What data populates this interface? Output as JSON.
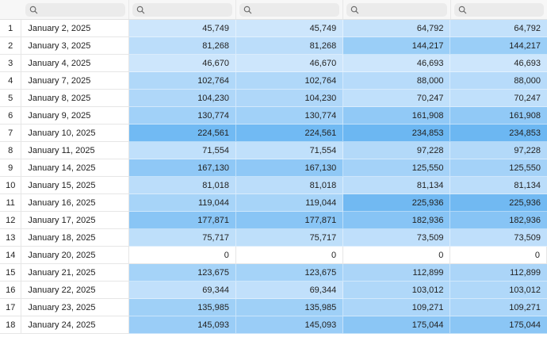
{
  "table": {
    "columns": [
      {
        "search_value": ""
      },
      {
        "search_value": ""
      },
      {
        "search_value": ""
      },
      {
        "search_value": ""
      },
      {
        "search_value": ""
      }
    ],
    "rows": [
      {
        "n": "1",
        "date": "January 2, 2025",
        "v": [
          "45,749",
          "45,749",
          "64,792",
          "64,792"
        ]
      },
      {
        "n": "2",
        "date": "January 3, 2025",
        "v": [
          "81,268",
          "81,268",
          "144,217",
          "144,217"
        ]
      },
      {
        "n": "3",
        "date": "January 4, 2025",
        "v": [
          "46,670",
          "46,670",
          "46,693",
          "46,693"
        ]
      },
      {
        "n": "4",
        "date": "January 7, 2025",
        "v": [
          "102,764",
          "102,764",
          "88,000",
          "88,000"
        ]
      },
      {
        "n": "5",
        "date": "January 8, 2025",
        "v": [
          "104,230",
          "104,230",
          "70,247",
          "70,247"
        ]
      },
      {
        "n": "6",
        "date": "January 9, 2025",
        "v": [
          "130,774",
          "130,774",
          "161,908",
          "161,908"
        ]
      },
      {
        "n": "7",
        "date": "January 10, 2025",
        "v": [
          "224,561",
          "224,561",
          "234,853",
          "234,853"
        ]
      },
      {
        "n": "8",
        "date": "January 11, 2025",
        "v": [
          "71,554",
          "71,554",
          "97,228",
          "97,228"
        ]
      },
      {
        "n": "9",
        "date": "January 14, 2025",
        "v": [
          "167,130",
          "167,130",
          "125,550",
          "125,550"
        ]
      },
      {
        "n": "10",
        "date": "January 15, 2025",
        "v": [
          "81,018",
          "81,018",
          "81,134",
          "81,134"
        ]
      },
      {
        "n": "11",
        "date": "January 16, 2025",
        "v": [
          "119,044",
          "119,044",
          "225,936",
          "225,936"
        ]
      },
      {
        "n": "12",
        "date": "January 17, 2025",
        "v": [
          "177,871",
          "177,871",
          "182,936",
          "182,936"
        ]
      },
      {
        "n": "13",
        "date": "January 18, 2025",
        "v": [
          "75,717",
          "75,717",
          "73,509",
          "73,509"
        ]
      },
      {
        "n": "14",
        "date": "January 20, 2025",
        "v": [
          "0",
          "0",
          "0",
          "0"
        ]
      },
      {
        "n": "15",
        "date": "January 21, 2025",
        "v": [
          "123,675",
          "123,675",
          "112,899",
          "112,899"
        ]
      },
      {
        "n": "16",
        "date": "January 22, 2025",
        "v": [
          "69,344",
          "69,344",
          "103,012",
          "103,012"
        ]
      },
      {
        "n": "17",
        "date": "January 23, 2025",
        "v": [
          "135,985",
          "135,985",
          "109,271",
          "109,271"
        ]
      },
      {
        "n": "18",
        "date": "January 24, 2025",
        "v": [
          "145,093",
          "145,093",
          "175,044",
          "175,044"
        ]
      }
    ]
  },
  "colors": {
    "heat_low": "#cde6fc",
    "heat_high": "#6cb7f2",
    "zero_cell": "#ffffff"
  },
  "icons": {
    "column_search": "search-icon"
  }
}
